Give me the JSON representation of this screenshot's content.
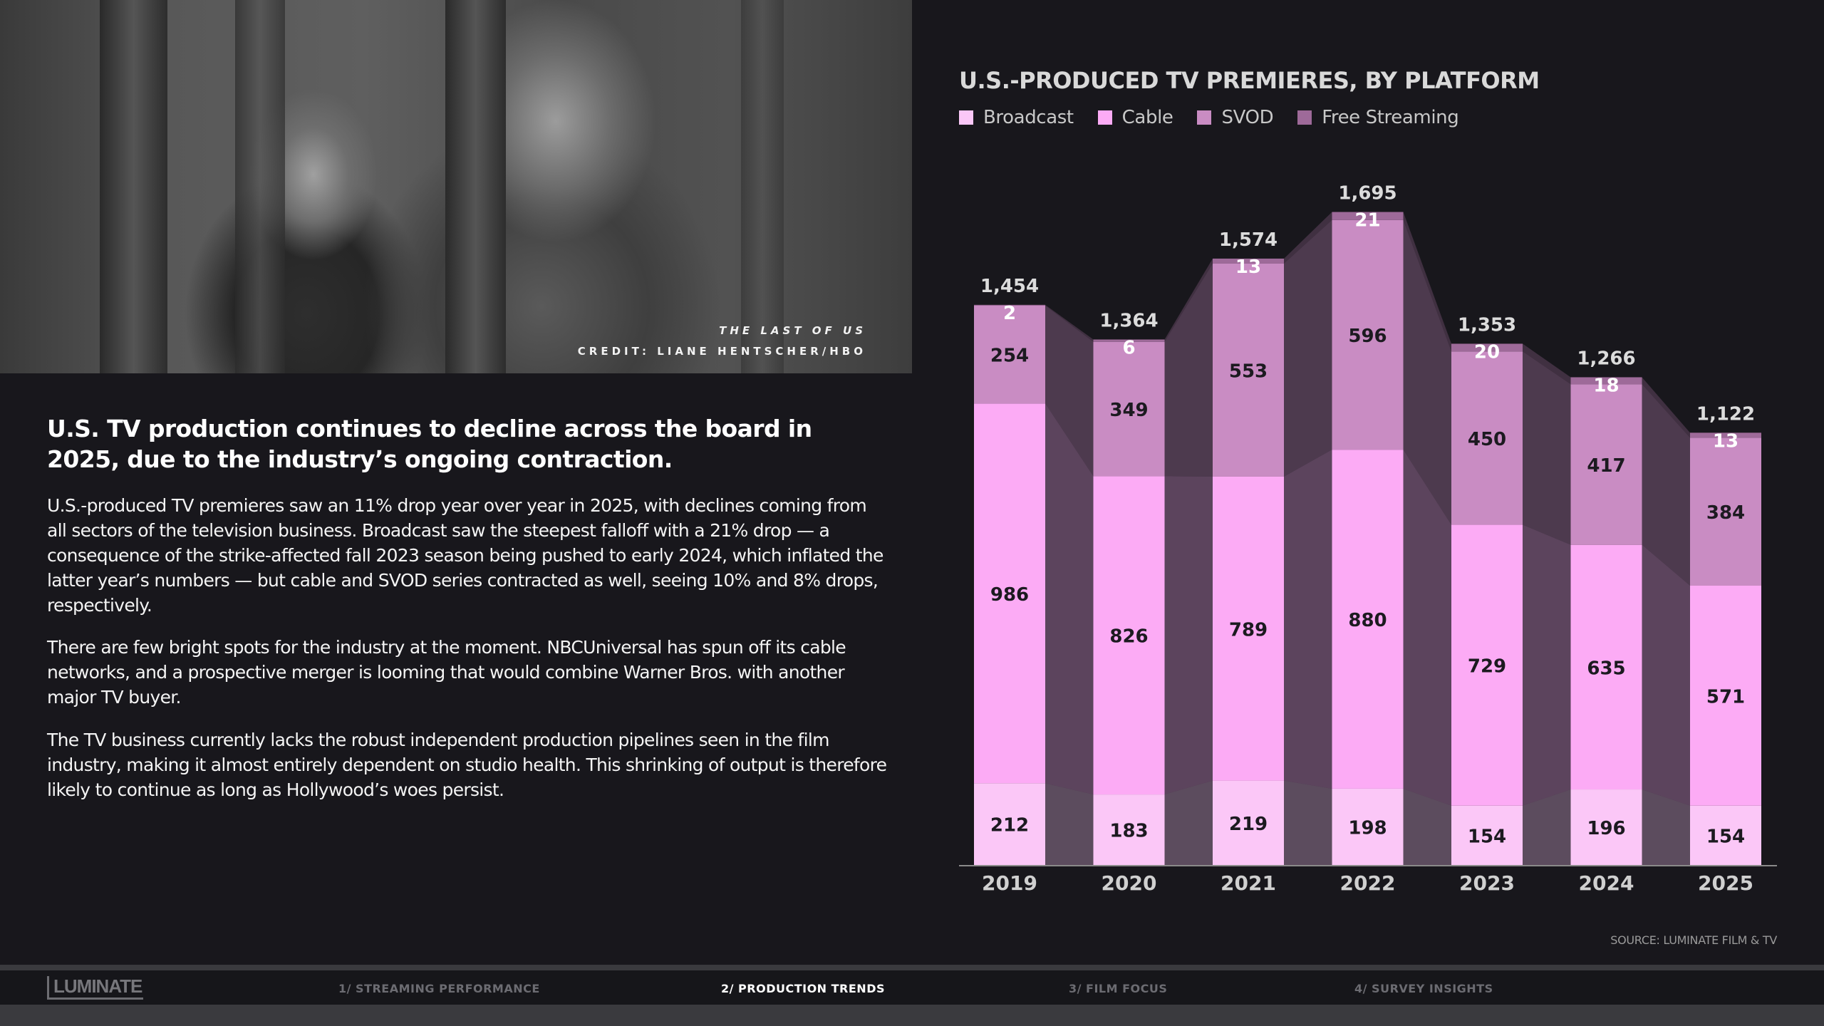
{
  "photo": {
    "caption_title": "THE LAST OF US",
    "caption_credit": "CREDIT: LIANE HENTSCHER/HBO"
  },
  "article": {
    "headline": "U.S. TV production continues to decline across the board in 2025, due to the industry’s ongoing contraction.",
    "paragraphs": [
      "U.S.-produced TV premieres saw an 11% drop year over year in 2025, with declines coming from all sectors of the television business. Broadcast saw the steepest falloff with a 21% drop — a consequence of the strike-affected fall 2023 season being pushed to early 2024, which inflated the latter year’s numbers — but cable and SVOD series contracted as well, seeing 10% and 8% drops, respectively.",
      "There are few bright spots for the industry at the moment. NBCUniversal has spun off its cable networks, and a prospective merger is looming that would combine Warner Bros. with another major TV buyer.",
      "The TV business currently lacks the robust independent production pipelines seen in the film industry, making it almost entirely dependent on studio health. This shrinking of output is therefore likely to continue as long as Hollywood’s woes persist."
    ]
  },
  "chart_data": {
    "type": "bar",
    "stacked": true,
    "title": "U.S.-PRODUCED TV PREMIERES, BY PLATFORM",
    "categories": [
      "2019",
      "2020",
      "2021",
      "2022",
      "2023",
      "2024",
      "2025"
    ],
    "series": [
      {
        "name": "Broadcast",
        "color": "#fbc7f7",
        "values": [
          212,
          183,
          219,
          198,
          154,
          196,
          154
        ]
      },
      {
        "name": "Cable",
        "color": "#fcabf5",
        "values": [
          986,
          826,
          789,
          880,
          729,
          635,
          571
        ]
      },
      {
        "name": "SVOD",
        "color": "#c98cc3",
        "values": [
          254,
          349,
          553,
          596,
          450,
          417,
          384
        ]
      },
      {
        "name": "Free Streaming",
        "color": "#9e6a99",
        "values": [
          2,
          6,
          13,
          21,
          20,
          18,
          13
        ]
      }
    ],
    "totals": [
      "1,454",
      "1,364",
      "1,574",
      "1,695",
      "1,353",
      "1,266",
      "1,122"
    ],
    "ylim": [
      0,
      1700
    ],
    "legend_position": "top-left",
    "source": "SOURCE: LUMINATE FILM & TV"
  },
  "footer": {
    "logo": "LUMINATE",
    "nav": [
      {
        "label": "1/ STREAMING PERFORMANCE",
        "active": false
      },
      {
        "label": "2/ PRODUCTION TRENDS",
        "active": true
      },
      {
        "label": "3/ FILM FOCUS",
        "active": false
      },
      {
        "label": "4/ SURVEY INSIGHTS",
        "active": false
      }
    ]
  }
}
